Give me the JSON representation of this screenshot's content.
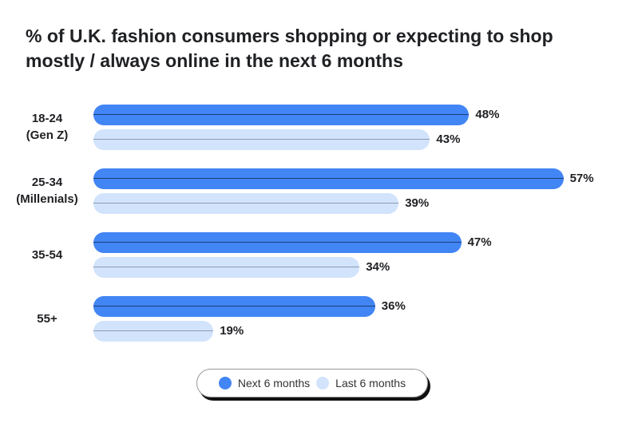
{
  "chart_data": {
    "type": "bar",
    "orientation": "horizontal",
    "title": "% of U.K. fashion consumers shopping or expecting to shop mostly / always online in the next 6 months",
    "categories": [
      [
        "18-24",
        "(Gen Z)"
      ],
      [
        "25-34",
        "(Millenials)"
      ],
      [
        "35-54"
      ],
      [
        "55+"
      ]
    ],
    "series": [
      {
        "name": "Next 6 months",
        "color": "#4285f4",
        "values": [
          48,
          57,
          47,
          36
        ],
        "labels": [
          "48%",
          "57%",
          "47%",
          "36%"
        ]
      },
      {
        "name": "Last 6 months",
        "color": "#d2e3fc",
        "values": [
          43,
          39,
          34,
          19
        ],
        "labels": [
          "43%",
          "39%",
          "34%",
          "19%"
        ]
      }
    ],
    "xlim": [
      0,
      60
    ],
    "grid": false,
    "legend": "bottom-center"
  }
}
